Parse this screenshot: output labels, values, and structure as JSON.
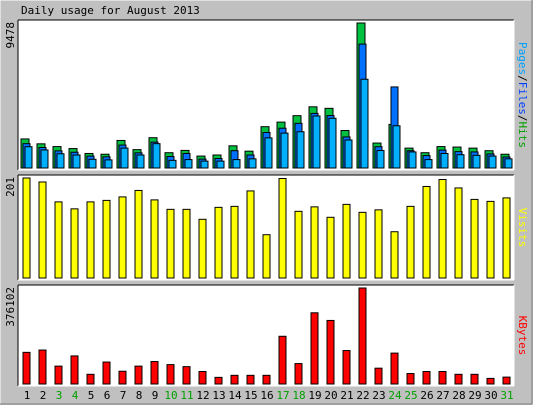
{
  "chart_data": {
    "type": "bar",
    "title": "Daily usage for August 2013",
    "categories": [
      "1",
      "2",
      "3",
      "4",
      "5",
      "6",
      "7",
      "8",
      "9",
      "10",
      "11",
      "12",
      "13",
      "14",
      "15",
      "16",
      "17",
      "18",
      "19",
      "20",
      "21",
      "22",
      "23",
      "24",
      "25",
      "26",
      "27",
      "28",
      "29",
      "30",
      "31"
    ],
    "weekend_days": [
      "3",
      "4",
      "10",
      "11",
      "17",
      "18",
      "24",
      "25",
      "31"
    ],
    "panels": [
      {
        "id": "hits",
        "ymax_label": "9478",
        "ylim": [
          0,
          9478
        ],
        "legend": [
          {
            "label": "Pages",
            "color": "#00a0ff"
          },
          {
            "label": "Files",
            "color": "#0040ff"
          },
          {
            "label": "Hits",
            "color": "#00a000"
          }
        ],
        "series": [
          {
            "name": "Hits",
            "color": "#00c040",
            "values": [
              1900,
              1580,
              1400,
              1270,
              950,
              900,
              1800,
              1200,
              1980,
              1000,
              1150,
              780,
              850,
              1450,
              1100,
              2700,
              3000,
              3420,
              4000,
              3900,
              2450,
              9478,
              1630,
              2850,
              1300,
              1000,
              1400,
              1370,
              1300,
              1130,
              900
            ]
          },
          {
            "name": "Files",
            "color": "#0070ff",
            "values": [
              1590,
              1340,
              1120,
              1030,
              780,
              730,
              1500,
              990,
              1690,
              750,
              950,
              580,
              620,
              1130,
              850,
              2320,
              2600,
              2920,
              3570,
              3430,
              2030,
              8100,
              1390,
              5300,
              1130,
              810,
              1170,
              1070,
              1050,
              920,
              720
            ]
          },
          {
            "name": "Pages",
            "color": "#00b0ff",
            "values": [
              1390,
              1180,
              930,
              850,
              570,
              530,
              1300,
              850,
              1590,
              500,
              550,
              450,
              450,
              550,
              600,
              1970,
              2280,
              2370,
              3400,
              3250,
              1830,
              5800,
              1140,
              2760,
              1050,
              550,
              950,
              870,
              830,
              780,
              600
            ]
          }
        ]
      },
      {
        "id": "visits",
        "ymax_label": "201",
        "ylim": [
          0,
          201
        ],
        "legend": [
          {
            "label": "Visits",
            "color": "#ffff00"
          }
        ],
        "series": [
          {
            "name": "Visits",
            "color": "#ffff00",
            "values": [
              201,
              193,
              153,
              139,
              153,
              156,
              163,
              176,
              157,
              138,
              138,
              118,
              142,
              144,
              175,
              87,
              200,
              134,
              143,
              122,
              148,
              132,
              137,
              93,
              144,
              184,
              198,
              181,
              158,
              154,
              161
            ]
          }
        ]
      },
      {
        "id": "kbytes",
        "ymax_label": "376102",
        "ylim": [
          0,
          376102
        ],
        "legend": [
          {
            "label": "KBytes",
            "color": "#ff0000"
          }
        ],
        "series": [
          {
            "name": "KBytes",
            "color": "#ff0000",
            "values": [
              124000,
              133000,
              70000,
              110000,
              38000,
              86000,
              50000,
              70000,
              88000,
              76000,
              68000,
              49000,
              26000,
              34000,
              34000,
              34000,
              187000,
              80000,
              279000,
              249000,
              131000,
              376102,
              62000,
              121000,
              41000,
              49000,
              49000,
              38000,
              38000,
              22000,
              27000
            ]
          }
        ]
      }
    ]
  }
}
